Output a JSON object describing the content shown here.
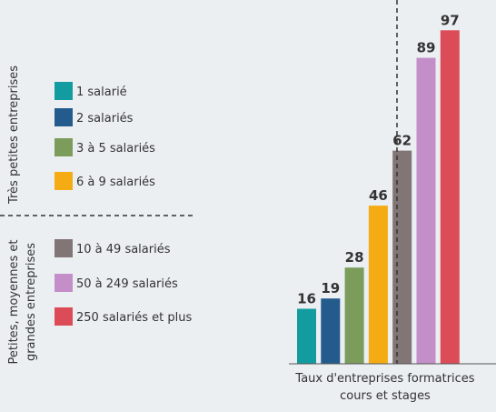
{
  "chart_data": {
    "type": "bar",
    "xlabel_lines": [
      "Taux d'entreprises formatrices",
      "cours et stages"
    ],
    "ylim": [
      0,
      100
    ],
    "groups": [
      {
        "label_lines": [
          "Très petites entreprises"
        ],
        "series_indices": [
          0,
          1,
          2,
          3
        ]
      },
      {
        "label_lines": [
          "Petites, moyennes et",
          "grandes entreprises"
        ],
        "series_indices": [
          4,
          5,
          6
        ]
      }
    ],
    "series": [
      {
        "name": "1 salarié",
        "value": 16,
        "color": "#139ca0"
      },
      {
        "name": "2 salariés",
        "value": 19,
        "color": "#235b8d"
      },
      {
        "name": "3 à 5 salariés",
        "value": 28,
        "color": "#7b9c5b"
      },
      {
        "name": "6 à 9 salariés",
        "value": 46,
        "color": "#f5ab14"
      },
      {
        "name": "10 à 49 salariés",
        "value": 62,
        "color": "#827575"
      },
      {
        "name": "50 à 249 salariés",
        "value": 89,
        "color": "#c48ec9"
      },
      {
        "name": "250 salariés et plus",
        "value": 97,
        "color": "#dc4c58"
      }
    ]
  }
}
